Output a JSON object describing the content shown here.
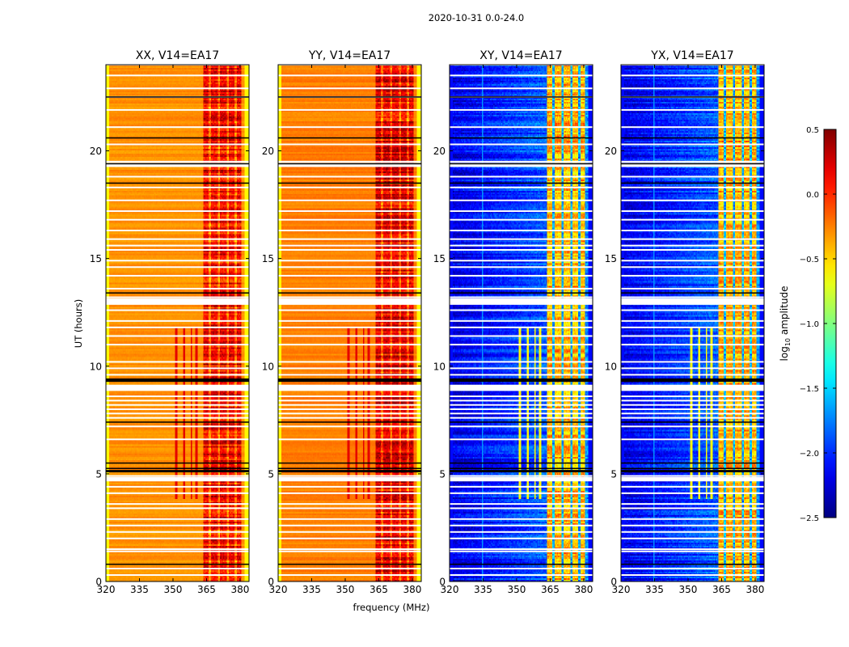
{
  "chart_data": {
    "type": "heatmap",
    "suptitle": "2020-10-31 0.0-24.0",
    "xlabel": "frequency (MHz)",
    "ylabel": "UT (hours)",
    "xlim": [
      320,
      384
    ],
    "ylim": [
      0,
      24
    ],
    "xticks": [
      320,
      335,
      350,
      365,
      380
    ],
    "xtick_labels": [
      "320",
      "335",
      "350",
      "365",
      "380"
    ],
    "yticks": [
      0,
      5,
      10,
      15,
      20
    ],
    "ytick_labels": [
      "0",
      "5",
      "10",
      "15",
      "20"
    ],
    "colormap": "jet",
    "colorbar": {
      "label_prefix": "log",
      "label_sub": "10",
      "label_suffix": " amplitude",
      "range": [
        -2.5,
        0.5
      ],
      "ticks": [
        0.5,
        0.0,
        -0.5,
        -1.0,
        -1.5,
        -2.0,
        -2.5
      ],
      "tick_labels": [
        "0.5",
        "0.0",
        "−0.5",
        "−1.0",
        "−1.5",
        "−2.0",
        "−2.5"
      ]
    },
    "panels": [
      {
        "title": "XX, V14=EA17",
        "pol": "XX",
        "base_level": -0.3,
        "band_level": 0.15,
        "edge_level": -0.6
      },
      {
        "title": "YY, V14=EA17",
        "pol": "YY",
        "base_level": -0.25,
        "band_level": 0.2,
        "edge_level": -0.6
      },
      {
        "title": "XY, V14=EA17",
        "pol": "XY",
        "base_level": -2.2,
        "band_level": -0.4,
        "edge_level": -2.4
      },
      {
        "title": "YX, V14=EA17",
        "pol": "YX",
        "base_level": -2.2,
        "band_level": -0.4,
        "edge_level": -2.4
      }
    ],
    "strong_band_MHz": [
      363.5,
      380.5
    ],
    "band_gaps_MHz": [
      366.5,
      370.5,
      374.5,
      378
    ],
    "rfi_lines_MHz": [
      351.5,
      355,
      358.2,
      360.5
    ],
    "rfi_lines_UT_range": [
      3.8,
      11.8
    ],
    "gap_rows_UT": [
      24.0,
      23.5,
      22.9,
      22.5,
      21.9,
      21.1,
      20.3,
      19.5,
      19.4,
      19.3,
      18.8,
      18.3,
      17.7,
      17.2,
      16.8,
      16.3,
      15.9,
      15.6,
      15.4,
      14.9,
      14.6,
      14.2,
      13.6,
      13.2,
      13.1,
      13.0,
      12.6,
      12.1,
      11.8,
      11.4,
      11.0,
      10.2,
      9.9,
      9.6,
      9.1,
      9.0,
      8.9,
      8.6,
      8.4,
      8.2,
      8.0,
      7.8,
      7.6,
      7.2,
      6.6,
      4.9,
      4.8,
      4.7,
      4.4,
      4.1,
      3.6,
      3.4,
      2.9,
      2.6,
      2.3,
      2.0,
      1.5,
      1.4,
      0.6,
      0.3
    ],
    "flagged_black_UT": [
      22.5,
      20.6,
      19.4,
      18.5,
      13.4,
      9.4,
      9.35,
      9.3,
      7.4,
      5.5,
      5.25,
      5.15,
      5.1,
      0.8
    ]
  }
}
